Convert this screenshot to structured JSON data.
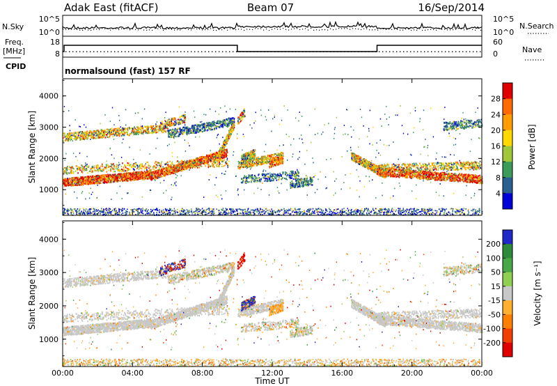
{
  "header": {
    "station": "Adak East (fitACF)",
    "beam": "Beam 07",
    "date": "16/Sep/2014"
  },
  "top_panels": {
    "nsky_label": "N.Sky",
    "nsky_ticks": [
      "10^5",
      "10^0"
    ],
    "nsearch_label": "N.Search",
    "nsearch_ticks": [
      "10^5",
      "10^0"
    ],
    "freq_label": "Freq.",
    "freq_unit": "[MHz]",
    "freq_ticks": [
      "18",
      "8"
    ],
    "nave_label": "Nave",
    "nave_ticks": [
      "60",
      "0"
    ],
    "cpid_label": "CPID",
    "cpid_text": "normalsound (fast) 157 RF"
  },
  "chart_data": [
    {
      "type": "heatmap",
      "name": "power",
      "xlabel": "",
      "ylabel": "Slant Range [km]",
      "yticks": [
        "4000",
        "3000",
        "2000",
        "1000"
      ],
      "ylim": [
        180,
        4550
      ],
      "xlim_hours": [
        0,
        24
      ],
      "colorbar_label": "Power [dB]",
      "colorbar_ticks": [
        "28",
        "24",
        "20",
        "16",
        "12",
        "8",
        "4"
      ],
      "colorbar_colors": [
        "#e00000",
        "#ff6a00",
        "#ff9c00",
        "#ffd800",
        "#9ec83a",
        "#3c9a5a",
        "#2a6090",
        "#0000d8"
      ]
    },
    {
      "type": "heatmap",
      "name": "velocity",
      "xlabel": "Time UT",
      "ylabel": "Slant Range [km]",
      "yticks": [
        "4000",
        "3000",
        "2000",
        "1000"
      ],
      "ylim": [
        180,
        4550
      ],
      "xlim_hours": [
        0,
        24
      ],
      "xticks": [
        "00:00",
        "04:00",
        "08:00",
        "12:00",
        "16:00",
        "20:00",
        "00:00"
      ],
      "colorbar_label": "Velocity [m s⁻¹]",
      "colorbar_ticks": [
        "200",
        "100",
        "50",
        "15",
        "-15",
        "-50",
        "-100",
        "-200"
      ],
      "colorbar_colors": [
        "#2028c8",
        "#2c8a3a",
        "#48a848",
        "#90d050",
        "#c8c8c8",
        "#ffb030",
        "#ff8000",
        "#f04000",
        "#e00000"
      ]
    }
  ]
}
